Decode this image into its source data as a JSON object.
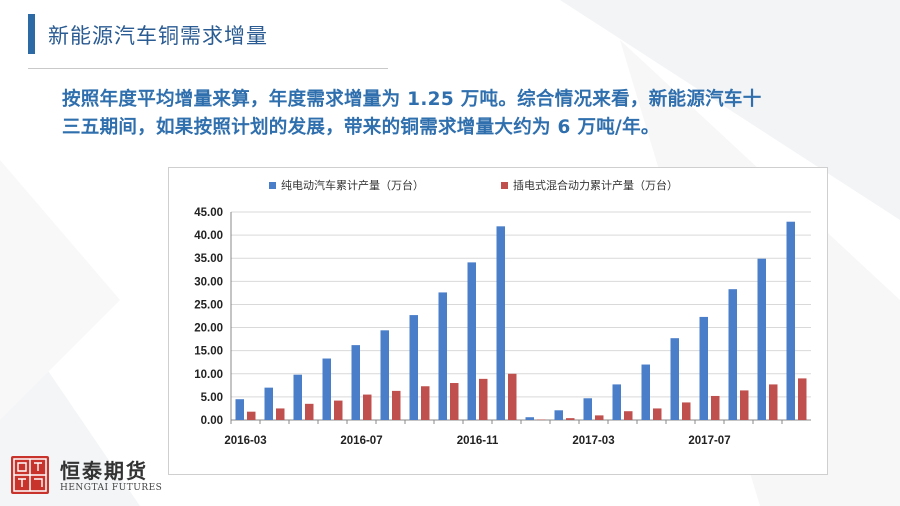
{
  "slide": {
    "title": "新能源汽车铜需求增量",
    "paragraph_line1": "按照年度平均增量来算，年度需求增量为 1.25 万吨。综合情况来看，新能源汽车十",
    "paragraph_line2": "三五期间，如果按照计划的发展，带来的铜需求增量大约为 6 万吨/年。"
  },
  "logo": {
    "seal_text": "證恒券泰",
    "name_cn": "恒泰期货",
    "name_en": "HENGTAI FUTURES"
  },
  "chart_data": {
    "type": "bar",
    "categories": [
      "2016-03",
      "2016-04",
      "2016-05",
      "2016-06",
      "2016-07",
      "2016-08",
      "2016-09",
      "2016-10",
      "2016-11",
      "2016-12",
      "2017-01",
      "2017-02",
      "2017-03",
      "2017-04",
      "2017-05",
      "2017-06",
      "2017-07",
      "2017-08",
      "2017-09",
      "2017-10"
    ],
    "tick_labels": [
      "2016-03",
      "2016-07",
      "2016-11",
      "2017-03",
      "2017-07"
    ],
    "series": [
      {
        "name": "纯电动汽车累计产量（万台）",
        "color": "#4a7ec9",
        "values": [
          4.5,
          7.0,
          9.8,
          13.3,
          16.2,
          19.4,
          22.7,
          27.6,
          34.1,
          41.9,
          0.6,
          2.1,
          4.7,
          7.7,
          12.0,
          17.7,
          22.3,
          28.3,
          34.9,
          42.9
        ]
      },
      {
        "name": "插电式混合动力累计产量（万台）",
        "color": "#c0504d",
        "values": [
          1.8,
          2.5,
          3.5,
          4.2,
          5.5,
          6.3,
          7.3,
          8.0,
          8.9,
          10.0,
          0.1,
          0.4,
          1.0,
          1.9,
          2.5,
          3.8,
          5.2,
          6.4,
          7.7,
          9.0
        ]
      }
    ],
    "yticks": [
      "45.00",
      "40.00",
      "35.00",
      "30.00",
      "25.00",
      "20.00",
      "15.00",
      "10.00",
      "5.00",
      "0.00"
    ],
    "ylim": [
      0,
      45
    ],
    "legend": "top",
    "grid": true
  }
}
